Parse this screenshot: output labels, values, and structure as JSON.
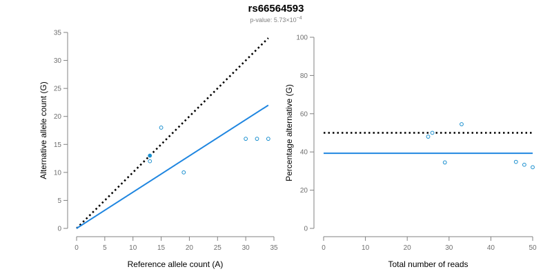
{
  "chart_data": [
    {
      "type": "scatter",
      "title": "rs66564593",
      "pvalue_prefix": "p-value: ",
      "pvalue_mantissa": "5.73",
      "pvalue_times": "×10",
      "pvalue_exponent": "−4",
      "xlabel": "Reference allele count (A)",
      "ylabel": "Alternative allele count (G)",
      "xlim": [
        0,
        35
      ],
      "ylim": [
        0,
        35
      ],
      "xticks": [
        0,
        5,
        10,
        15,
        20,
        25,
        30,
        35
      ],
      "yticks": [
        0,
        5,
        10,
        15,
        20,
        25,
        30,
        35
      ],
      "points": [
        {
          "x": 13,
          "y": 13,
          "filled": true
        },
        {
          "x": 13,
          "y": 12,
          "filled": false
        },
        {
          "x": 15,
          "y": 18,
          "filled": false
        },
        {
          "x": 19,
          "y": 10,
          "filled": false
        },
        {
          "x": 30,
          "y": 16,
          "filled": false
        },
        {
          "x": 32,
          "y": 16,
          "filled": false
        },
        {
          "x": 34,
          "y": 16,
          "filled": false
        }
      ],
      "lines": [
        {
          "name": "expected",
          "style": "dotted",
          "color": "#000000",
          "x": [
            0,
            34
          ],
          "y": [
            0,
            34
          ]
        },
        {
          "name": "fit",
          "style": "solid",
          "color": "#1f86e0",
          "x": [
            0,
            34
          ],
          "y": [
            0,
            22
          ]
        }
      ]
    },
    {
      "type": "scatter",
      "xlabel": "Total number of reads",
      "ylabel": "Percentage alternative (G)",
      "xlim": [
        0,
        50
      ],
      "ylim": [
        0,
        100
      ],
      "xticks": [
        0,
        10,
        20,
        30,
        40,
        50
      ],
      "yticks": [
        0,
        20,
        40,
        60,
        80,
        100
      ],
      "points": [
        {
          "x": 25,
          "y": 48
        },
        {
          "x": 26,
          "y": 50
        },
        {
          "x": 29,
          "y": 34.5
        },
        {
          "x": 33,
          "y": 54.5
        },
        {
          "x": 46,
          "y": 34.8
        },
        {
          "x": 48,
          "y": 33.3
        },
        {
          "x": 50,
          "y": 32
        }
      ],
      "lines": [
        {
          "name": "expected",
          "style": "dotted",
          "color": "#000000",
          "x": [
            0,
            50
          ],
          "y": [
            50,
            50
          ]
        },
        {
          "name": "fit",
          "style": "solid",
          "color": "#1f86e0",
          "x": [
            0,
            50
          ],
          "y": [
            39.3,
            39.3
          ]
        }
      ]
    }
  ],
  "colors": {
    "point": "#1a8fcf",
    "axis": "#808080"
  }
}
